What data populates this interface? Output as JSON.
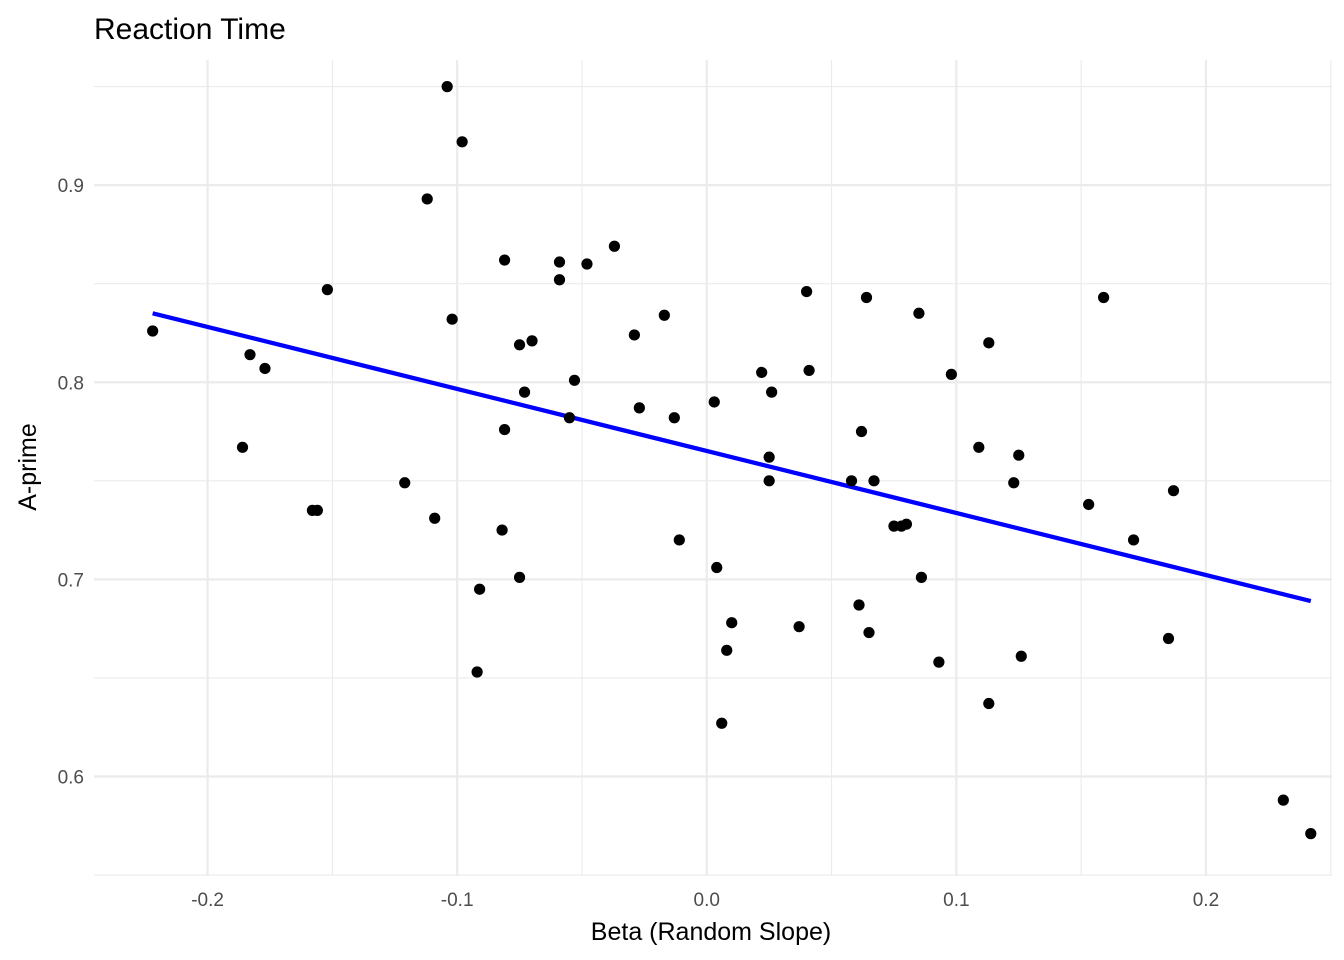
{
  "chart_data": {
    "type": "scatter",
    "title": "Reaction Time",
    "xlabel": "Beta (Random Slope)",
    "ylabel": "A-prime",
    "xlim": [
      -0.2455,
      0.2505
    ],
    "ylim": [
      0.5495,
      0.9635
    ],
    "x_ticks": [
      -0.2,
      -0.1,
      0.0,
      0.1,
      0.2
    ],
    "x_tick_labels": [
      "-0.2",
      "-0.1",
      "0.0",
      "0.1",
      "0.2"
    ],
    "y_ticks": [
      0.6,
      0.7,
      0.8,
      0.9
    ],
    "y_tick_labels": [
      "0.6",
      "0.7",
      "0.8",
      "0.9"
    ],
    "grid": true,
    "point_color": "#000000",
    "line_color": "#0000ff",
    "points": [
      {
        "x": -0.222,
        "y": 0.826
      },
      {
        "x": -0.183,
        "y": 0.814
      },
      {
        "x": -0.177,
        "y": 0.807
      },
      {
        "x": -0.186,
        "y": 0.767
      },
      {
        "x": -0.158,
        "y": 0.735
      },
      {
        "x": -0.156,
        "y": 0.735
      },
      {
        "x": -0.152,
        "y": 0.847
      },
      {
        "x": -0.121,
        "y": 0.749
      },
      {
        "x": -0.112,
        "y": 0.893
      },
      {
        "x": -0.109,
        "y": 0.731
      },
      {
        "x": -0.104,
        "y": 0.95
      },
      {
        "x": -0.102,
        "y": 0.832
      },
      {
        "x": -0.098,
        "y": 0.922
      },
      {
        "x": -0.092,
        "y": 0.653
      },
      {
        "x": -0.091,
        "y": 0.695
      },
      {
        "x": -0.081,
        "y": 0.862
      },
      {
        "x": -0.081,
        "y": 0.776
      },
      {
        "x": -0.082,
        "y": 0.725
      },
      {
        "x": -0.075,
        "y": 0.819
      },
      {
        "x": -0.075,
        "y": 0.701
      },
      {
        "x": -0.073,
        "y": 0.795
      },
      {
        "x": -0.07,
        "y": 0.821
      },
      {
        "x": -0.059,
        "y": 0.861
      },
      {
        "x": -0.059,
        "y": 0.852
      },
      {
        "x": -0.055,
        "y": 0.782
      },
      {
        "x": -0.053,
        "y": 0.801
      },
      {
        "x": -0.048,
        "y": 0.86
      },
      {
        "x": -0.037,
        "y": 0.869
      },
      {
        "x": -0.029,
        "y": 0.824
      },
      {
        "x": -0.027,
        "y": 0.787
      },
      {
        "x": -0.017,
        "y": 0.834
      },
      {
        "x": -0.013,
        "y": 0.782
      },
      {
        "x": -0.011,
        "y": 0.72
      },
      {
        "x": 0.003,
        "y": 0.79
      },
      {
        "x": 0.004,
        "y": 0.706
      },
      {
        "x": 0.006,
        "y": 0.627
      },
      {
        "x": 0.008,
        "y": 0.664
      },
      {
        "x": 0.01,
        "y": 0.678
      },
      {
        "x": 0.022,
        "y": 0.805
      },
      {
        "x": 0.025,
        "y": 0.762
      },
      {
        "x": 0.025,
        "y": 0.75
      },
      {
        "x": 0.026,
        "y": 0.795
      },
      {
        "x": 0.037,
        "y": 0.676
      },
      {
        "x": 0.04,
        "y": 0.846
      },
      {
        "x": 0.041,
        "y": 0.806
      },
      {
        "x": 0.058,
        "y": 0.75
      },
      {
        "x": 0.061,
        "y": 0.687
      },
      {
        "x": 0.062,
        "y": 0.775
      },
      {
        "x": 0.064,
        "y": 0.843
      },
      {
        "x": 0.065,
        "y": 0.673
      },
      {
        "x": 0.067,
        "y": 0.75
      },
      {
        "x": 0.075,
        "y": 0.727
      },
      {
        "x": 0.078,
        "y": 0.727
      },
      {
        "x": 0.08,
        "y": 0.728
      },
      {
        "x": 0.085,
        "y": 0.835
      },
      {
        "x": 0.086,
        "y": 0.701
      },
      {
        "x": 0.093,
        "y": 0.658
      },
      {
        "x": 0.098,
        "y": 0.804
      },
      {
        "x": 0.109,
        "y": 0.767
      },
      {
        "x": 0.113,
        "y": 0.82
      },
      {
        "x": 0.113,
        "y": 0.637
      },
      {
        "x": 0.123,
        "y": 0.749
      },
      {
        "x": 0.125,
        "y": 0.763
      },
      {
        "x": 0.126,
        "y": 0.661
      },
      {
        "x": 0.153,
        "y": 0.738
      },
      {
        "x": 0.159,
        "y": 0.843
      },
      {
        "x": 0.171,
        "y": 0.72
      },
      {
        "x": 0.185,
        "y": 0.67
      },
      {
        "x": 0.187,
        "y": 0.745
      },
      {
        "x": 0.231,
        "y": 0.588
      },
      {
        "x": 0.242,
        "y": 0.571
      }
    ],
    "fit_line": {
      "x": [
        -0.222,
        0.242
      ],
      "y": [
        0.835,
        0.689
      ]
    }
  }
}
